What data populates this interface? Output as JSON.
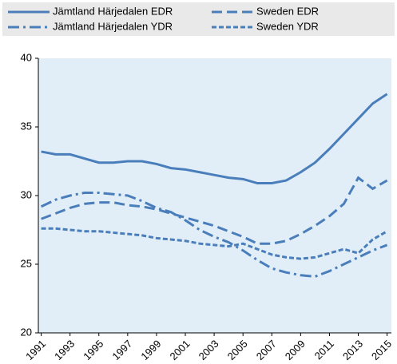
{
  "chart_data": {
    "type": "line",
    "x": [
      1991,
      1992,
      1993,
      1994,
      1995,
      1996,
      1997,
      1998,
      1999,
      2000,
      2001,
      2002,
      2003,
      2004,
      2005,
      2006,
      2007,
      2008,
      2009,
      2010,
      2011,
      2012,
      2013,
      2014,
      2015
    ],
    "xlim": [
      1990.8,
      2015.3
    ],
    "xticks": [
      1991,
      1993,
      1995,
      1997,
      1999,
      2001,
      2003,
      2005,
      2007,
      2009,
      2011,
      2013,
      2015
    ],
    "ylim": [
      20,
      40
    ],
    "yticks": [
      20,
      25,
      30,
      35,
      40
    ],
    "grid": false,
    "series": [
      {
        "name": "Jämtland Härjedalen EDR",
        "color": "#4a7ebb",
        "dash": "solid",
        "values": [
          33.2,
          33.0,
          33.0,
          32.7,
          32.4,
          32.4,
          32.5,
          32.5,
          32.3,
          32.0,
          31.9,
          31.7,
          31.5,
          31.3,
          31.2,
          30.9,
          30.9,
          31.1,
          31.7,
          32.4,
          33.4,
          34.5,
          35.6,
          36.7,
          37.4
        ]
      },
      {
        "name": "Sweden EDR",
        "color": "#4a7ebb",
        "dash": "long",
        "values": [
          28.3,
          28.7,
          29.1,
          29.4,
          29.5,
          29.5,
          29.3,
          29.2,
          29.0,
          28.7,
          28.4,
          28.1,
          27.8,
          27.4,
          27.0,
          26.5,
          26.5,
          26.7,
          27.2,
          27.8,
          28.5,
          29.4,
          31.3,
          30.5,
          31.1
        ]
      },
      {
        "name": "Jämtland Härjedalen YDR",
        "color": "#4a7ebb",
        "dash": "dashdot",
        "values": [
          29.2,
          29.7,
          30.0,
          30.2,
          30.2,
          30.1,
          30.0,
          29.6,
          29.1,
          28.8,
          28.2,
          27.5,
          27.0,
          26.6,
          26.0,
          25.3,
          24.7,
          24.4,
          24.2,
          24.1,
          24.5,
          25.0,
          25.5,
          26.0,
          26.4
        ]
      },
      {
        "name": "Sweden YDR",
        "color": "#4a7ebb",
        "dash": "short",
        "values": [
          27.6,
          27.6,
          27.5,
          27.4,
          27.4,
          27.3,
          27.2,
          27.1,
          26.9,
          26.8,
          26.7,
          26.5,
          26.4,
          26.3,
          26.5,
          26.1,
          25.7,
          25.5,
          25.4,
          25.5,
          25.8,
          26.1,
          25.8,
          26.8,
          27.4
        ]
      }
    ]
  }
}
